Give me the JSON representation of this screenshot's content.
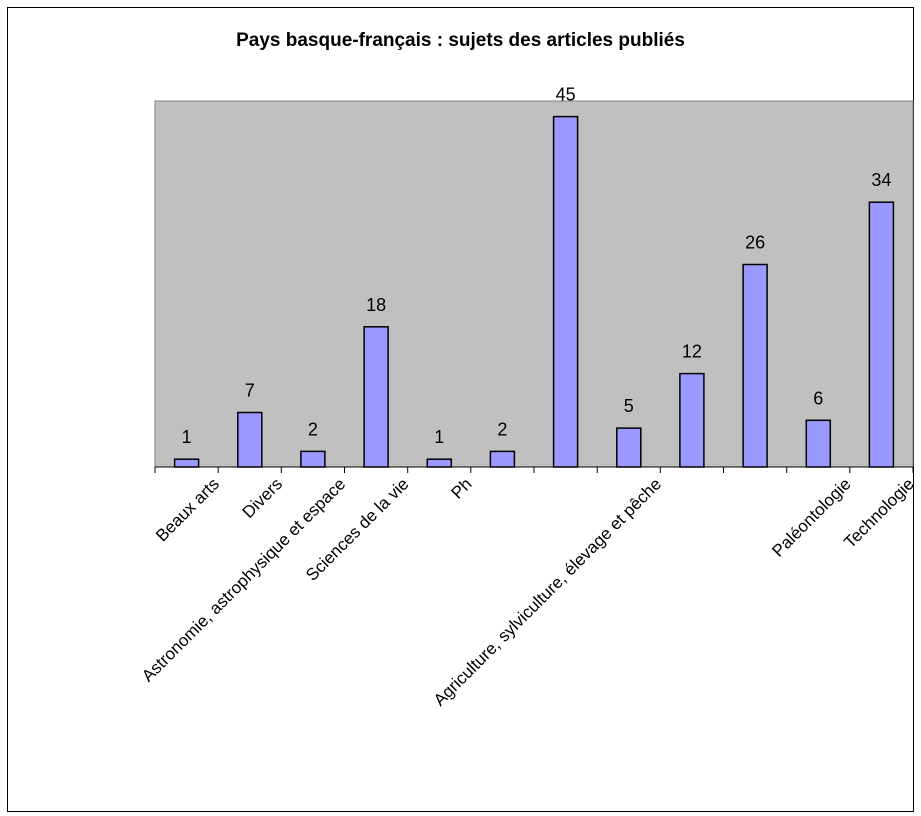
{
  "chart_data": {
    "type": "bar",
    "title": "Pays basque-français : sujets des articles publiés",
    "xlabel": "",
    "ylabel": "",
    "ylim": [
      0,
      47
    ],
    "grid": false,
    "legend": "none",
    "bar_color": "#9999ff",
    "plot_bg": "#c0c0c0",
    "categories": [
      "Beaux arts",
      "Divers",
      "Astronomie, astrophysique et espace",
      "Sciences de la vie",
      "Ph",
      "",
      "",
      "Agriculture, sylviculture, élevage et pêche",
      "",
      "",
      "Paléontologie",
      "Technologie"
    ],
    "values": [
      1,
      7,
      2,
      18,
      1,
      2,
      45,
      5,
      12,
      26,
      6,
      34
    ]
  }
}
